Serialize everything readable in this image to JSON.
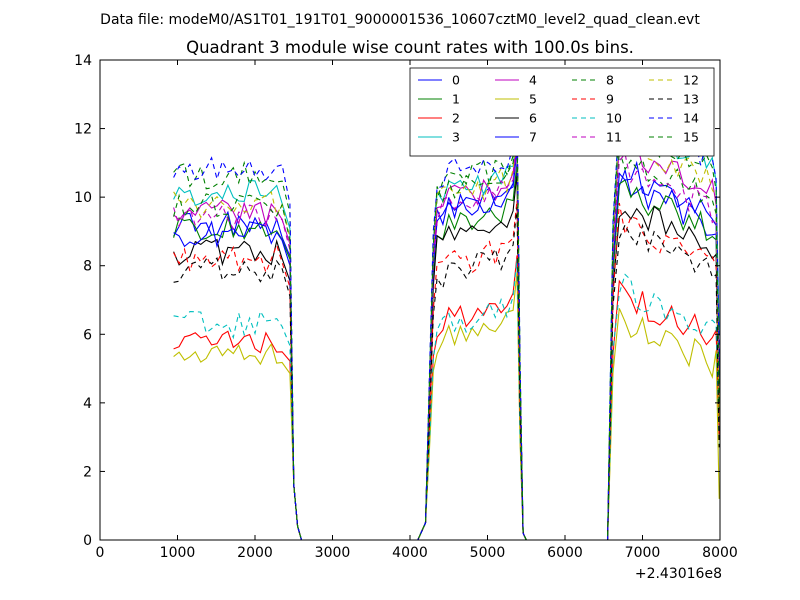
{
  "figure": {
    "suptitle": "Data file: modeM0/AS1T01_191T01_9000001536_10607cztM0_level2_quad_clean.evt"
  },
  "chart_data": {
    "type": "line",
    "title": "Quadrant 3 module wise count rates with 100.0s bins.",
    "xlabel": "",
    "ylabel": "",
    "x_offset_label": "+2.43016e8",
    "xlim": [
      0,
      8000
    ],
    "ylim": [
      0,
      14
    ],
    "xticks": [
      0,
      1000,
      2000,
      3000,
      4000,
      5000,
      6000,
      7000,
      8000
    ],
    "yticks": [
      0,
      2,
      4,
      6,
      8,
      10,
      12,
      14
    ],
    "grid": false,
    "legend_position": "top-right",
    "legend_columns": 4,
    "x_segments": [
      {
        "from": 950,
        "to": 2350,
        "step": 70
      },
      {
        "to": 2450
      },
      {
        "to": 2500
      },
      {
        "to": 2550
      },
      {
        "to": 2600
      },
      {
        "to": 4100
      },
      {
        "to": 4200
      },
      {
        "to": 4250
      },
      {
        "to": 4300
      },
      {
        "from": 4350,
        "to": 5250,
        "step": 75
      },
      {
        "to": 5330
      },
      {
        "to": 5380
      },
      {
        "to": 5420
      },
      {
        "to": 5460
      },
      {
        "to": 5500
      },
      {
        "to": 6550
      },
      {
        "to": 6620
      },
      {
        "from": 6700,
        "to": 7900,
        "step": 75
      },
      {
        "to": 7950
      },
      {
        "to": 7990
      }
    ],
    "series": [
      {
        "name": "0",
        "color": "#0000ff",
        "style": "solid",
        "levels": [
          9.2,
          9.5,
          10.5,
          4.5
        ]
      },
      {
        "name": "1",
        "color": "#008000",
        "style": "solid",
        "levels": [
          9.1,
          9.0,
          10.3,
          4.0
        ]
      },
      {
        "name": "2",
        "color": "#ff0000",
        "style": "solid",
        "levels": [
          5.8,
          6.3,
          7.2,
          3.0
        ]
      },
      {
        "name": "3",
        "color": "#00bfbf",
        "style": "solid",
        "levels": [
          10.1,
          10.0,
          12.3,
          6.0
        ]
      },
      {
        "name": "4",
        "color": "#bf00bf",
        "style": "solid",
        "levels": [
          9.6,
          9.8,
          11.5,
          5.0
        ]
      },
      {
        "name": "5",
        "color": "#bfbf00",
        "style": "solid",
        "levels": [
          5.4,
          5.8,
          6.5,
          1.2
        ]
      },
      {
        "name": "6",
        "color": "#000000",
        "style": "solid",
        "levels": [
          8.4,
          8.7,
          9.8,
          3.5
        ]
      },
      {
        "name": "7",
        "color": "#0000ff",
        "style": "solid",
        "levels": [
          8.9,
          9.4,
          10.8,
          4.3
        ]
      },
      {
        "name": "8",
        "color": "#008000",
        "style": "dashed",
        "levels": [
          10.6,
          10.3,
          11.2,
          3.8
        ]
      },
      {
        "name": "9",
        "color": "#ff0000",
        "style": "dashed",
        "levels": [
          8.2,
          7.9,
          9.4,
          3.2
        ]
      },
      {
        "name": "10",
        "color": "#00bfbf",
        "style": "dashed",
        "levels": [
          6.3,
          6.2,
          7.4,
          2.8
        ]
      },
      {
        "name": "11",
        "color": "#bf00bf",
        "style": "dashed",
        "levels": [
          9.4,
          9.6,
          11.0,
          3.6
        ]
      },
      {
        "name": "12",
        "color": "#bfbf00",
        "style": "dashed",
        "levels": [
          9.8,
          9.9,
          11.8,
          3.4
        ]
      },
      {
        "name": "13",
        "color": "#000000",
        "style": "dashed",
        "levels": [
          7.9,
          7.7,
          9.1,
          2.7
        ]
      },
      {
        "name": "14",
        "color": "#0000ff",
        "style": "dashed",
        "levels": [
          10.9,
          10.6,
          12.4,
          5.2
        ]
      },
      {
        "name": "15",
        "color": "#008000",
        "style": "dashed",
        "levels": [
          9.7,
          10.1,
          12.0,
          3.9
        ]
      }
    ]
  }
}
